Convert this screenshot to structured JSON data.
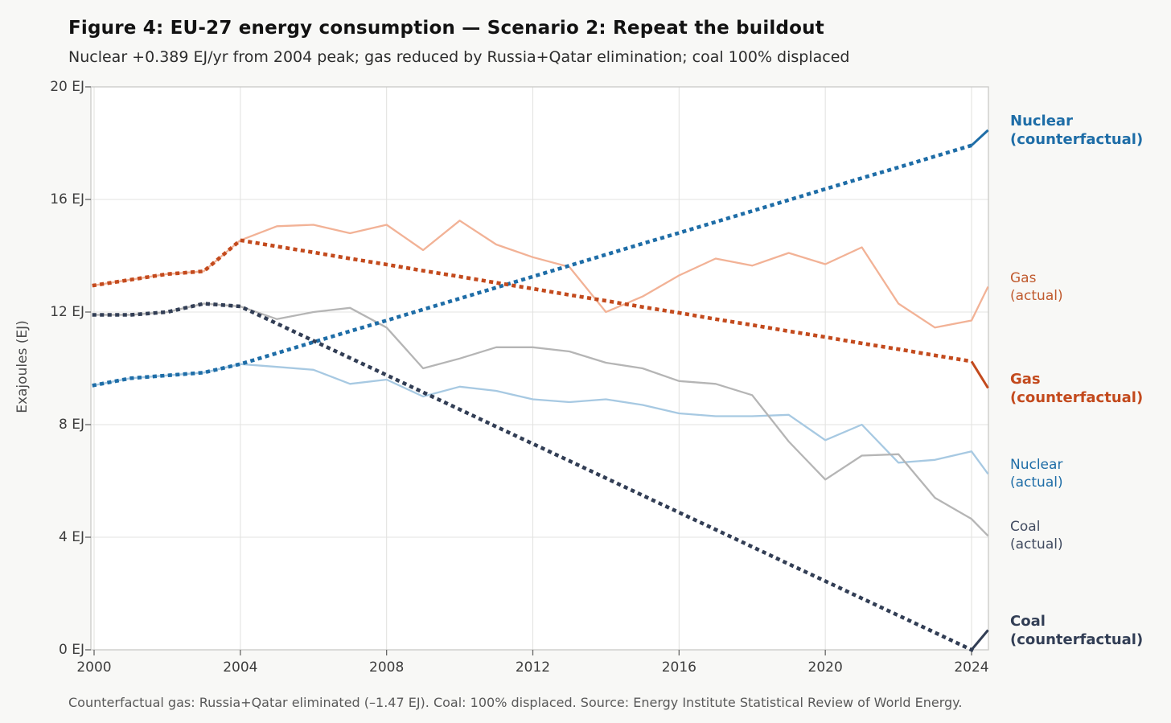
{
  "header": {
    "title": "Figure 4: EU-27 energy consumption — Scenario 2: Repeat the buildout",
    "subtitle": "Nuclear +0.389 EJ/yr from 2004 peak; gas reduced by Russia+Qatar elimination; coal 100% displaced"
  },
  "footer": {
    "text": "Counterfactual gas: Russia+Qatar eliminated (–1.47 EJ). Coal: 100% displaced. Source: Energy Institute Statistical Review of World Energy."
  },
  "chart_data": {
    "type": "line",
    "title": "Figure 4: EU-27 energy consumption — Scenario 2: Repeat the buildout",
    "subtitle": "Nuclear +0.389 EJ/yr from 2004 peak; gas reduced by Russia+Qatar elimination; coal 100% displaced",
    "xlabel": "",
    "ylabel": "Exajoules (EJ)",
    "xlim": [
      1999.9,
      2024.45
    ],
    "ylim": [
      0,
      20
    ],
    "grid": true,
    "legend_position": "right-edge-labels",
    "x_ticks": [
      2000,
      2004,
      2008,
      2012,
      2016,
      2020,
      2024
    ],
    "x_tick_labels": [
      "2000",
      "2004",
      "2008",
      "2012",
      "2016",
      "2020",
      "2024"
    ],
    "y_ticks": [
      0,
      4,
      8,
      12,
      16,
      20
    ],
    "y_tick_labels": [
      "0 EJ",
      "4 EJ",
      "8 EJ",
      "12 EJ",
      "16 EJ",
      "20 EJ"
    ],
    "x": [
      2000,
      2001,
      2002,
      2003,
      2004,
      2005,
      2006,
      2007,
      2008,
      2009,
      2010,
      2011,
      2012,
      2013,
      2014,
      2015,
      2016,
      2017,
      2018,
      2019,
      2020,
      2021,
      2022,
      2023,
      2024,
      2024.45
    ],
    "series": [
      {
        "name": "Nuclear (counterfactual)",
        "label_lines": [
          "Nuclear",
          "(counterfactual)"
        ],
        "style": "dotted",
        "tail_solid": true,
        "color": "#1e6da7",
        "label_color": "#1e6da7",
        "label_bold": true,
        "values": [
          9.4,
          9.65,
          9.75,
          9.85,
          10.15,
          10.54,
          10.93,
          11.32,
          11.7,
          12.09,
          12.48,
          12.87,
          13.26,
          13.65,
          14.04,
          14.43,
          14.81,
          15.2,
          15.59,
          15.98,
          16.37,
          16.76,
          17.14,
          17.53,
          17.92,
          18.46
        ]
      },
      {
        "name": "Gas (actual)",
        "label_lines": [
          "Gas",
          "(actual)"
        ],
        "style": "solid",
        "tail_solid": false,
        "color": "#f2b296",
        "label_color": "#c05a2e",
        "label_bold": false,
        "values": [
          12.95,
          13.15,
          13.35,
          13.45,
          14.55,
          15.05,
          15.1,
          14.8,
          15.1,
          14.2,
          15.25,
          14.4,
          13.95,
          13.6,
          12.0,
          12.55,
          13.3,
          13.9,
          13.65,
          14.1,
          13.7,
          14.3,
          12.3,
          11.45,
          11.7,
          12.9
        ]
      },
      {
        "name": "Gas (counterfactual)",
        "label_lines": [
          "Gas",
          "(counterfactual)"
        ],
        "style": "dotted",
        "tail_solid": true,
        "color": "#c34a1d",
        "label_color": "#c34a1d",
        "label_bold": true,
        "values": [
          12.95,
          13.15,
          13.35,
          13.45,
          14.55,
          14.33,
          14.12,
          13.9,
          13.69,
          13.47,
          13.26,
          13.04,
          12.83,
          12.61,
          12.4,
          12.18,
          11.97,
          11.75,
          11.54,
          11.32,
          11.11,
          10.89,
          10.68,
          10.46,
          10.25,
          9.3
        ]
      },
      {
        "name": "Nuclear (actual)",
        "label_lines": [
          "Nuclear",
          "(actual)"
        ],
        "style": "solid",
        "tail_solid": false,
        "color": "#a7c9e2",
        "label_color": "#1e6da7",
        "label_bold": false,
        "values": [
          9.4,
          9.65,
          9.75,
          9.85,
          10.15,
          10.05,
          9.95,
          9.45,
          9.6,
          9.0,
          9.35,
          9.2,
          8.9,
          8.8,
          8.9,
          8.7,
          8.4,
          8.3,
          8.3,
          8.35,
          7.45,
          8.0,
          6.65,
          6.75,
          7.05,
          6.25
        ]
      },
      {
        "name": "Coal (actual)",
        "label_lines": [
          "Coal",
          "(actual)"
        ],
        "style": "solid",
        "tail_solid": false,
        "color": "#b5b5b5",
        "label_color": "#414b60",
        "label_bold": false,
        "values": [
          11.9,
          11.9,
          12.0,
          12.3,
          12.2,
          11.75,
          12.0,
          12.15,
          11.45,
          10.0,
          10.35,
          10.75,
          10.75,
          10.6,
          10.2,
          10.0,
          9.55,
          9.45,
          9.05,
          7.4,
          6.05,
          6.9,
          6.95,
          5.4,
          4.65,
          4.05
        ]
      },
      {
        "name": "Coal (counterfactual)",
        "label_lines": [
          "Coal",
          "(counterfactual)"
        ],
        "style": "dotted",
        "tail_solid": true,
        "color": "#323e55",
        "label_color": "#323e55",
        "label_bold": true,
        "values": [
          11.9,
          11.9,
          12.0,
          12.3,
          12.2,
          11.59,
          10.98,
          10.37,
          9.76,
          9.15,
          8.54,
          7.93,
          7.32,
          6.71,
          6.1,
          5.49,
          4.88,
          4.27,
          3.66,
          3.05,
          2.44,
          1.83,
          1.22,
          0.61,
          0.0,
          0.7
        ]
      }
    ],
    "colors": {
      "background": "#f8f8f6",
      "plot_background": "#ffffff",
      "gridline": "#e3e3e1",
      "frame": "#c9c9c7",
      "tick": "#666666"
    }
  }
}
